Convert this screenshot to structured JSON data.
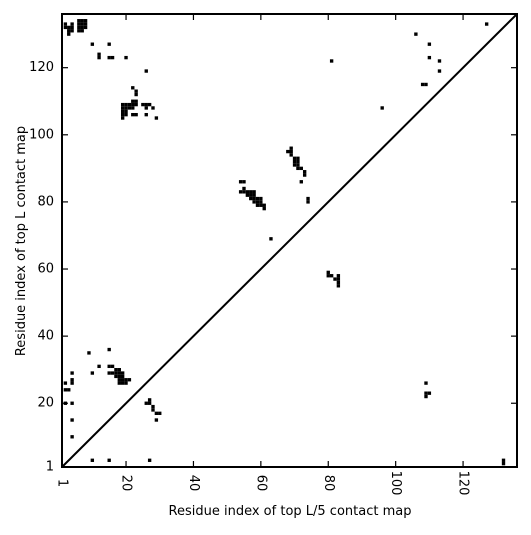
{
  "chart_data": {
    "type": "scatter",
    "title": "",
    "xlabel": "Residue index of top L/5 contact map",
    "ylabel": "Residue index of top L contact map",
    "xlim": [
      1,
      136
    ],
    "ylim": [
      1,
      136
    ],
    "x_ticks": [
      "1",
      "20",
      "40",
      "60",
      "80",
      "100",
      "120"
    ],
    "y_ticks": [
      "1",
      "20",
      "40",
      "60",
      "80",
      "100",
      "120"
    ],
    "x_tick_values": [
      1,
      20,
      40,
      60,
      80,
      100,
      120
    ],
    "y_tick_values": [
      1,
      20,
      40,
      60,
      80,
      100,
      120
    ],
    "grid": false,
    "diagonal": [
      [
        1,
        1
      ],
      [
        136,
        136
      ]
    ],
    "marker_color": "#000000",
    "series": [
      {
        "values": [
          [
            2,
            132
          ],
          [
            2,
            133
          ],
          [
            3,
            132
          ],
          [
            3,
            131
          ],
          [
            3,
            130
          ],
          [
            4,
            131
          ],
          [
            4,
            132
          ],
          [
            4,
            133
          ],
          [
            6,
            131
          ],
          [
            6,
            132
          ],
          [
            6,
            133
          ],
          [
            6,
            134
          ],
          [
            7,
            131
          ],
          [
            7,
            132
          ],
          [
            7,
            133
          ],
          [
            7,
            134
          ],
          [
            8,
            132
          ],
          [
            8,
            133
          ],
          [
            8,
            134
          ],
          [
            10,
            127
          ],
          [
            12,
            124
          ],
          [
            12,
            123
          ],
          [
            15,
            127
          ],
          [
            15,
            123
          ],
          [
            16,
            123
          ],
          [
            20,
            123
          ],
          [
            26,
            119
          ],
          [
            19,
            105
          ],
          [
            19,
            106
          ],
          [
            19,
            107
          ],
          [
            19,
            108
          ],
          [
            19,
            109
          ],
          [
            20,
            106
          ],
          [
            20,
            107
          ],
          [
            20,
            108
          ],
          [
            20,
            109
          ],
          [
            21,
            108
          ],
          [
            21,
            109
          ],
          [
            22,
            108
          ],
          [
            22,
            109
          ],
          [
            22,
            110
          ],
          [
            22,
            114
          ],
          [
            23,
            109
          ],
          [
            23,
            110
          ],
          [
            23,
            112
          ],
          [
            23,
            113
          ],
          [
            22,
            106
          ],
          [
            23,
            106
          ],
          [
            25,
            109
          ],
          [
            26,
            109
          ],
          [
            26,
            108
          ],
          [
            27,
            109
          ],
          [
            28,
            108
          ],
          [
            26,
            106
          ],
          [
            29,
            105
          ],
          [
            81,
            122
          ],
          [
            96,
            108
          ],
          [
            106,
            130
          ],
          [
            108,
            115
          ],
          [
            109,
            115
          ],
          [
            110,
            127
          ],
          [
            110,
            123
          ],
          [
            113,
            122
          ],
          [
            113,
            119
          ],
          [
            127,
            133
          ],
          [
            54,
            86
          ],
          [
            55,
            86
          ],
          [
            54,
            83
          ],
          [
            55,
            83
          ],
          [
            55,
            84
          ],
          [
            56,
            82
          ],
          [
            56,
            83
          ],
          [
            57,
            81
          ],
          [
            57,
            82
          ],
          [
            57,
            83
          ],
          [
            58,
            80
          ],
          [
            58,
            81
          ],
          [
            58,
            82
          ],
          [
            58,
            83
          ],
          [
            59,
            79
          ],
          [
            59,
            80
          ],
          [
            59,
            81
          ],
          [
            60,
            79
          ],
          [
            60,
            80
          ],
          [
            60,
            81
          ],
          [
            61,
            79
          ],
          [
            61,
            78
          ],
          [
            63,
            69
          ],
          [
            68,
            95
          ],
          [
            69,
            94
          ],
          [
            69,
            95
          ],
          [
            69,
            96
          ],
          [
            70,
            91
          ],
          [
            70,
            92
          ],
          [
            70,
            93
          ],
          [
            71,
            90
          ],
          [
            71,
            91
          ],
          [
            71,
            92
          ],
          [
            71,
            93
          ],
          [
            72,
            90
          ],
          [
            73,
            89
          ],
          [
            73,
            88
          ],
          [
            72,
            86
          ],
          [
            74,
            81
          ],
          [
            74,
            80
          ],
          [
            80,
            58
          ],
          [
            80,
            59
          ],
          [
            81,
            58
          ],
          [
            82,
            57
          ],
          [
            83,
            58
          ],
          [
            83,
            57
          ],
          [
            83,
            56
          ],
          [
            83,
            55
          ],
          [
            2,
            26
          ],
          [
            2,
            24
          ],
          [
            2,
            20
          ],
          [
            3,
            24
          ],
          [
            4,
            29
          ],
          [
            4,
            27
          ],
          [
            4,
            26
          ],
          [
            4,
            20
          ],
          [
            4,
            15
          ],
          [
            4,
            10
          ],
          [
            9,
            35
          ],
          [
            10,
            29
          ],
          [
            12,
            31
          ],
          [
            15,
            36
          ],
          [
            15,
            31
          ],
          [
            15,
            29
          ],
          [
            16,
            31
          ],
          [
            16,
            29
          ],
          [
            17,
            30
          ],
          [
            17,
            29
          ],
          [
            17,
            28
          ],
          [
            18,
            30
          ],
          [
            18,
            29
          ],
          [
            18,
            28
          ],
          [
            18,
            27
          ],
          [
            18,
            26
          ],
          [
            19,
            29
          ],
          [
            19,
            28
          ],
          [
            19,
            27
          ],
          [
            19,
            26
          ],
          [
            20,
            27
          ],
          [
            20,
            26
          ],
          [
            21,
            27
          ],
          [
            26,
            20
          ],
          [
            27,
            21
          ],
          [
            27,
            20
          ],
          [
            28,
            19
          ],
          [
            28,
            18
          ],
          [
            29,
            17
          ],
          [
            30,
            17
          ],
          [
            29,
            15
          ],
          [
            109,
            26
          ],
          [
            109,
            23
          ],
          [
            109,
            22
          ],
          [
            110,
            23
          ],
          [
            132,
            3
          ],
          [
            132,
            2
          ],
          [
            10,
            3
          ],
          [
            15,
            3
          ],
          [
            27,
            3
          ]
        ]
      }
    ]
  }
}
